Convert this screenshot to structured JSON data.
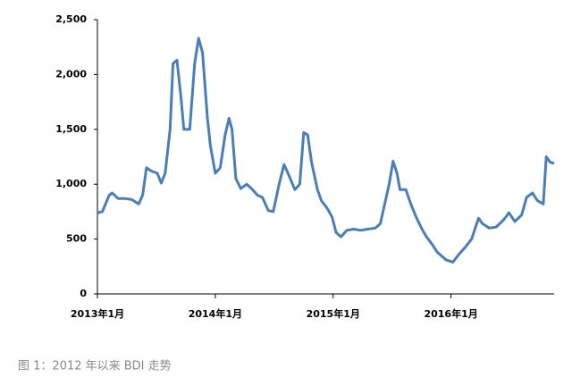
{
  "chart_data": {
    "type": "line",
    "caption": "图 1：2012 年以来 BDI 走势",
    "x": [
      0,
      0.5,
      1.2,
      1.5,
      2.1,
      2.8,
      3.5,
      4.2,
      4.6,
      5,
      5.5,
      6.1,
      6.5,
      6.9,
      7.4,
      7.7,
      8.1,
      8.5,
      8.8,
      9.4,
      9.9,
      10.3,
      10.7,
      11.2,
      11.5,
      12,
      12.5,
      13,
      13.4,
      13.7,
      14.1,
      14.6,
      15.2,
      15.7,
      16.3,
      16.8,
      17.4,
      17.9,
      18.5,
      19,
      19.5,
      20.1,
      20.6,
      21,
      21.4,
      21.8,
      22.4,
      22.8,
      23.4,
      23.9,
      24.3,
      24.8,
      25.4,
      26.1,
      26.8,
      27.5,
      28.3,
      28.8,
      29.2,
      29.7,
      30.1,
      30.5,
      30.8,
      31.4,
      31.9,
      32.5,
      33,
      33.5,
      34.1,
      34.6,
      35.5,
      36.2,
      36.8,
      37.4,
      38.1,
      38.8,
      39.2,
      39.9,
      40.6,
      41.4,
      41.9,
      42.5,
      43.2,
      43.7,
      44.3,
      44.8,
      45.4,
      45.7,
      46.1,
      46.5
    ],
    "series": [
      {
        "name": "BDI",
        "color": "#4a7ebb",
        "values": [
          740,
          750,
          900,
          920,
          870,
          870,
          860,
          820,
          900,
          1150,
          1120,
          1100,
          1010,
          1100,
          1500,
          2100,
          2130,
          1800,
          1500,
          1500,
          2100,
          2330,
          2200,
          1600,
          1350,
          1100,
          1150,
          1450,
          1600,
          1500,
          1050,
          960,
          1000,
          960,
          900,
          880,
          760,
          750,
          1000,
          1180,
          1080,
          950,
          1000,
          1470,
          1450,
          1200,
          950,
          850,
          780,
          700,
          560,
          520,
          580,
          590,
          580,
          590,
          600,
          640,
          800,
          1000,
          1210,
          1100,
          950,
          950,
          820,
          690,
          600,
          520,
          450,
          380,
          310,
          290,
          360,
          420,
          500,
          690,
          640,
          600,
          610,
          680,
          740,
          660,
          720,
          880,
          920,
          850,
          820,
          1250,
          1200,
          1190
        ]
      }
    ],
    "xlim": [
      0,
      46.5
    ],
    "xticks": [
      {
        "value": 0,
        "label": "2013年1月"
      },
      {
        "value": 12,
        "label": "2014年1月"
      },
      {
        "value": 24,
        "label": "2015年1月"
      },
      {
        "value": 36,
        "label": "2016年1月"
      }
    ],
    "ylim": [
      0,
      2500
    ],
    "yticks": [
      0,
      500,
      {
        "value": 1000,
        "label": "1,000"
      },
      {
        "value": 1500,
        "label": "1,500"
      },
      {
        "value": 2000,
        "label": "2,000"
      },
      {
        "value": 2500,
        "label": "2,500"
      }
    ]
  }
}
